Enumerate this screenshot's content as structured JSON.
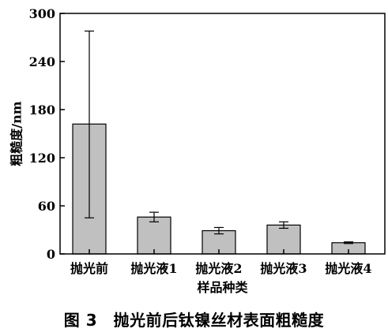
{
  "chart_data": {
    "type": "bar",
    "categories": [
      "抛光前",
      "抛光液1",
      "抛光液2",
      "抛光液3",
      "抛光液4"
    ],
    "values": [
      162,
      46,
      29,
      36,
      14
    ],
    "error_low": [
      45,
      40,
      25,
      32,
      13
    ],
    "error_high": [
      278,
      52,
      33,
      40,
      15
    ],
    "xlabel": "样品种类",
    "ylabel": "粗糙度/nm",
    "ylim": [
      0,
      300
    ],
    "yticks": [
      0,
      60,
      120,
      180,
      240,
      300
    ],
    "bar_color": "#c0c0c0",
    "grid": false,
    "legend": false
  },
  "caption": "图 3　抛光前后钛镍丝材表面粗糙度"
}
